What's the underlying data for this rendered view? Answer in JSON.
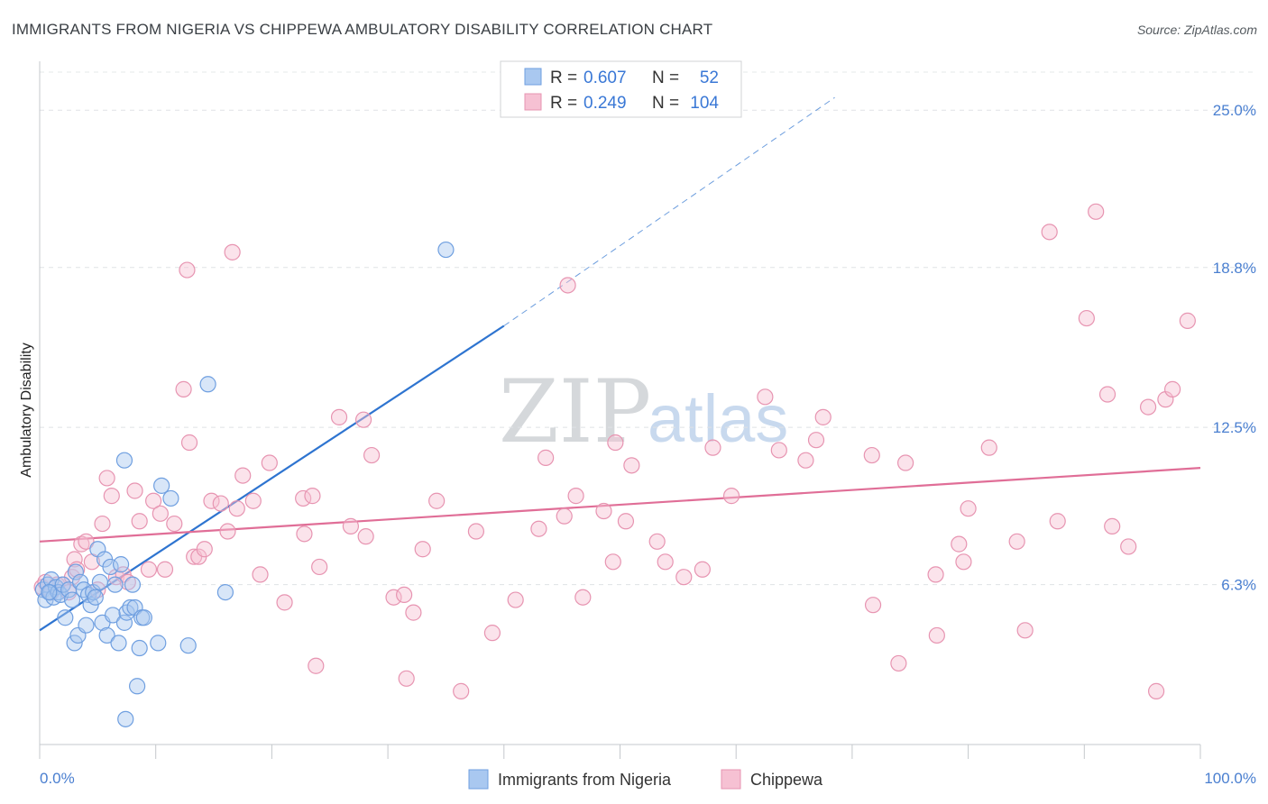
{
  "chart_data": {
    "type": "scatter",
    "title": "IMMIGRANTS FROM NIGERIA VS CHIPPEWA AMBULATORY DISABILITY CORRELATION CHART",
    "source": "Source: ZipAtlas.com",
    "ylabel": "Ambulatory Disability",
    "xlabel": "",
    "xlim": [
      0,
      100
    ],
    "ylim": [
      0,
      26.5
    ],
    "x_tick_labels": [
      "0.0%",
      "100.0%"
    ],
    "y_ticks": [
      6.3,
      12.5,
      18.8,
      25.0
    ],
    "y_tick_labels": [
      "6.3%",
      "12.5%",
      "18.8%",
      "25.0%"
    ],
    "watermark": {
      "part1": "ZIP",
      "part2": "atlas"
    },
    "legend": {
      "r_label": "R =",
      "n_label": "N =",
      "entries": [
        {
          "r": "0.607",
          "n": "52"
        },
        {
          "r": "0.249",
          "n": "104"
        }
      ]
    },
    "series": [
      {
        "name": "Immigrants from Nigeria",
        "color": "#6f9fe0",
        "fill": "#a9c8f0",
        "line_color": "#2e74d0",
        "trend": {
          "x0": 0,
          "y0": 4.5,
          "x1": 40,
          "y1": 16.5,
          "dash_x_end": 68.5,
          "dash_y_end": 25.5
        },
        "points": [
          [
            0.3,
            6.1
          ],
          [
            0.5,
            5.7
          ],
          [
            0.7,
            6.3
          ],
          [
            0.9,
            6.0
          ],
          [
            1.0,
            6.5
          ],
          [
            1.2,
            5.8
          ],
          [
            1.4,
            6.2
          ],
          [
            1.6,
            6.0
          ],
          [
            1.8,
            5.9
          ],
          [
            2.0,
            6.3
          ],
          [
            2.2,
            5.0
          ],
          [
            2.5,
            6.1
          ],
          [
            2.8,
            5.7
          ],
          [
            3.0,
            4.0
          ],
          [
            3.1,
            6.8
          ],
          [
            3.3,
            4.3
          ],
          [
            3.5,
            6.4
          ],
          [
            3.8,
            6.1
          ],
          [
            4.0,
            4.7
          ],
          [
            4.2,
            5.9
          ],
          [
            4.4,
            5.5
          ],
          [
            4.6,
            6.0
          ],
          [
            4.8,
            5.8
          ],
          [
            5.0,
            7.7
          ],
          [
            5.2,
            6.4
          ],
          [
            5.4,
            4.8
          ],
          [
            5.6,
            7.3
          ],
          [
            5.8,
            4.3
          ],
          [
            6.1,
            7.0
          ],
          [
            6.3,
            5.1
          ],
          [
            6.5,
            6.3
          ],
          [
            6.8,
            4.0
          ],
          [
            7.0,
            7.1
          ],
          [
            7.3,
            4.8
          ],
          [
            7.5,
            5.2
          ],
          [
            7.8,
            5.4
          ],
          [
            8.0,
            6.3
          ],
          [
            0.8,
            6.0
          ],
          [
            7.4,
            1.0
          ],
          [
            8.2,
            5.4
          ],
          [
            10.2,
            4.0
          ],
          [
            8.4,
            2.3
          ],
          [
            8.6,
            3.8
          ],
          [
            8.8,
            5.0
          ],
          [
            9.0,
            5.0
          ],
          [
            10.5,
            10.2
          ],
          [
            7.3,
            11.2
          ],
          [
            11.3,
            9.7
          ],
          [
            12.8,
            3.9
          ],
          [
            14.5,
            14.2
          ],
          [
            16.0,
            6.0
          ],
          [
            35.0,
            19.5
          ]
        ]
      },
      {
        "name": "Chippewa",
        "color": "#e794b1",
        "fill": "#f6c1d3",
        "line_color": "#e06e97",
        "trend": {
          "x0": 0,
          "y0": 8.0,
          "x1": 100,
          "y1": 10.9
        },
        "points": [
          [
            0.2,
            6.2
          ],
          [
            0.5,
            6.4
          ],
          [
            1.0,
            6.0
          ],
          [
            1.5,
            6.3
          ],
          [
            2.0,
            6.3
          ],
          [
            2.5,
            6.0
          ],
          [
            2.8,
            6.6
          ],
          [
            3.0,
            7.3
          ],
          [
            3.2,
            6.9
          ],
          [
            3.6,
            7.9
          ],
          [
            4.0,
            8.0
          ],
          [
            4.5,
            7.2
          ],
          [
            5.0,
            6.1
          ],
          [
            5.4,
            8.7
          ],
          [
            5.8,
            10.5
          ],
          [
            6.2,
            9.8
          ],
          [
            6.6,
            6.6
          ],
          [
            7.2,
            6.7
          ],
          [
            7.6,
            6.4
          ],
          [
            8.2,
            10.0
          ],
          [
            8.6,
            8.8
          ],
          [
            9.4,
            6.9
          ],
          [
            9.8,
            9.6
          ],
          [
            10.4,
            9.1
          ],
          [
            10.8,
            6.9
          ],
          [
            11.6,
            8.7
          ],
          [
            12.4,
            14.0
          ],
          [
            12.7,
            18.7
          ],
          [
            12.9,
            11.9
          ],
          [
            13.3,
            7.4
          ],
          [
            13.7,
            7.4
          ],
          [
            14.2,
            7.7
          ],
          [
            14.8,
            9.6
          ],
          [
            15.6,
            9.5
          ],
          [
            16.2,
            8.4
          ],
          [
            16.6,
            19.4
          ],
          [
            17.0,
            9.3
          ],
          [
            17.5,
            10.6
          ],
          [
            18.4,
            9.6
          ],
          [
            19.0,
            6.7
          ],
          [
            19.8,
            11.1
          ],
          [
            21.1,
            5.6
          ],
          [
            22.7,
            9.7
          ],
          [
            22.8,
            8.3
          ],
          [
            23.5,
            9.8
          ],
          [
            23.8,
            3.1
          ],
          [
            24.1,
            7.0
          ],
          [
            25.8,
            12.9
          ],
          [
            26.8,
            8.6
          ],
          [
            27.9,
            12.8
          ],
          [
            28.1,
            8.2
          ],
          [
            28.6,
            11.4
          ],
          [
            30.5,
            5.8
          ],
          [
            31.4,
            5.9
          ],
          [
            31.6,
            2.6
          ],
          [
            32.2,
            5.2
          ],
          [
            33.0,
            7.7
          ],
          [
            34.2,
            9.6
          ],
          [
            36.3,
            2.1
          ],
          [
            37.6,
            8.4
          ],
          [
            39.0,
            4.4
          ],
          [
            41.0,
            5.7
          ],
          [
            43.0,
            8.5
          ],
          [
            43.6,
            11.3
          ],
          [
            45.2,
            9.0
          ],
          [
            45.5,
            18.1
          ],
          [
            46.2,
            9.8
          ],
          [
            46.8,
            5.8
          ],
          [
            48.6,
            9.2
          ],
          [
            49.4,
            7.2
          ],
          [
            49.6,
            11.9
          ],
          [
            50.5,
            8.8
          ],
          [
            51.0,
            11.0
          ],
          [
            53.2,
            8.0
          ],
          [
            53.9,
            7.2
          ],
          [
            55.5,
            6.6
          ],
          [
            57.1,
            6.9
          ],
          [
            58.0,
            11.7
          ],
          [
            59.6,
            9.8
          ],
          [
            62.5,
            13.7
          ],
          [
            63.7,
            11.6
          ],
          [
            66.0,
            11.2
          ],
          [
            66.9,
            12.0
          ],
          [
            67.5,
            12.9
          ],
          [
            71.8,
            5.5
          ],
          [
            71.7,
            11.4
          ],
          [
            74.0,
            3.2
          ],
          [
            74.6,
            11.1
          ],
          [
            77.2,
            6.7
          ],
          [
            77.3,
            4.3
          ],
          [
            79.2,
            7.9
          ],
          [
            79.6,
            7.2
          ],
          [
            80.0,
            9.3
          ],
          [
            81.8,
            11.7
          ],
          [
            84.2,
            8.0
          ],
          [
            84.9,
            4.5
          ],
          [
            87.0,
            20.2
          ],
          [
            87.7,
            8.8
          ],
          [
            90.2,
            16.8
          ],
          [
            91.0,
            21.0
          ],
          [
            92.0,
            13.8
          ],
          [
            92.4,
            8.6
          ],
          [
            93.8,
            7.8
          ],
          [
            95.5,
            13.3
          ],
          [
            96.2,
            2.1
          ],
          [
            97.0,
            13.6
          ],
          [
            97.6,
            14.0
          ],
          [
            98.9,
            16.7
          ]
        ]
      }
    ]
  }
}
